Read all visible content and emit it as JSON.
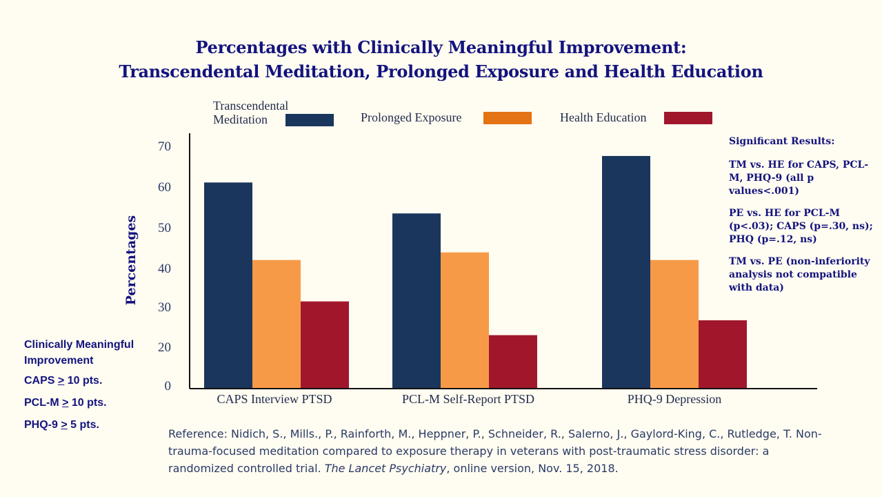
{
  "title": {
    "line1": "Percentages with Clinically Meaningful Improvement:",
    "line2": "Transcendental Meditation, Prolonged Exposure and Health Education"
  },
  "legend": [
    {
      "label_line1": "Transcendental",
      "label_line2": "Meditation",
      "color": "#1a365d"
    },
    {
      "label_line1": "Prolonged Exposure",
      "label_line2": "",
      "color": "#f79a48"
    },
    {
      "label_line1": "Health Education",
      "label_line2": "",
      "color": "#a0172c"
    }
  ],
  "significant": {
    "heading": "Significant Results:",
    "items": [
      "TM vs. HE for CAPS, PCL-M, PHQ-9 (all p values<.001)",
      "PE vs. HE for PCL-M (p<.03); CAPS (p=.30, ns); PHQ (p=.12, ns)",
      "TM vs. PE (non-inferiority analysis not compatible with data)"
    ]
  },
  "definitions": {
    "heading_line1": "Clinically Meaningful",
    "heading_line2": "Improvement",
    "items": [
      {
        "measure": "CAPS ",
        "symbol": ">",
        "rest": " 10 pts."
      },
      {
        "measure": "PCL-M ",
        "symbol": ">",
        "rest": " 10 pts."
      },
      {
        "measure": "PHQ-9 ",
        "symbol": ">",
        "rest": " 5 pts."
      }
    ]
  },
  "reference": {
    "pre": "Reference:  Nidich, S., Mills., P., Rainforth, M., Heppner, P., Schneider, R., Salerno, J., Gaylord-King, C., Rutledge, T.  Non-trauma-focused meditation compared to exposure therapy in veterans with post-traumatic stress disorder: a randomized controlled trial. ",
    "journal": "The Lancet Psychiatry",
    "post": ", online version, Nov. 15, 2018."
  },
  "chart_data": {
    "type": "bar",
    "ylabel": "Percentages",
    "yticks": [
      0,
      20,
      30,
      40,
      50,
      60,
      70
    ],
    "ylim": [
      0,
      70
    ],
    "categories": [
      "CAPS Interview PTSD",
      "PCL-M Self-Report PTSD",
      "PHQ-9 Depression"
    ],
    "series": [
      {
        "name": "Transcendental Meditation",
        "values": [
          61,
          53.3,
          67.6
        ],
        "color": "#1a365d"
      },
      {
        "name": "Prolonged Exposure",
        "values": [
          41.7,
          43.6,
          41.7
        ],
        "color": "#f79a48"
      },
      {
        "name": "Health Education",
        "values": [
          31.4,
          23,
          26.7
        ],
        "color": "#a0172c"
      }
    ]
  }
}
